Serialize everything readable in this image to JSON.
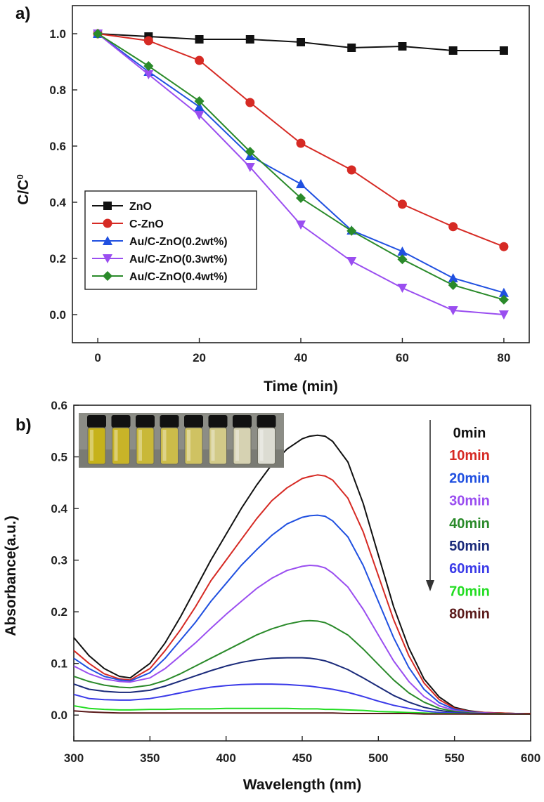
{
  "chart_data": [
    {
      "panel_label": "a)",
      "type": "line",
      "xlabel": "Time (min)",
      "ylabel": "C/C",
      "ylabel_sup": "0",
      "xlim": [
        -5,
        85
      ],
      "ylim": [
        -0.1,
        1.1
      ],
      "xticks": [
        0,
        20,
        40,
        60,
        80
      ],
      "yticks": [
        0.0,
        0.2,
        0.4,
        0.6,
        0.8,
        1.0
      ],
      "ytick_labels": [
        "0.0",
        "0.2",
        "0.4",
        "0.6",
        "0.8",
        "1.0"
      ],
      "legend": "center-left",
      "x": [
        0,
        10,
        20,
        30,
        40,
        50,
        60,
        70,
        80
      ],
      "series": [
        {
          "name": "ZnO",
          "color": "#111111",
          "marker": "square",
          "values": [
            1.0,
            0.99,
            0.98,
            0.98,
            0.97,
            0.95,
            0.955,
            0.94,
            0.94
          ]
        },
        {
          "name": "C-ZnO",
          "color": "#d62a24",
          "marker": "circle",
          "values": [
            1.0,
            0.975,
            0.905,
            0.755,
            0.61,
            0.515,
            0.393,
            0.313,
            0.242
          ]
        },
        {
          "name": "Au/C-ZnO(0.2wt%)",
          "color": "#2050e0",
          "marker": "triangle-up",
          "values": [
            1.0,
            0.865,
            0.74,
            0.565,
            0.465,
            0.3,
            0.225,
            0.13,
            0.078
          ]
        },
        {
          "name": "Au/C-ZnO(0.3wt%)",
          "color": "#9a4ef0",
          "marker": "triangle-down",
          "values": [
            1.0,
            0.855,
            0.71,
            0.525,
            0.32,
            0.19,
            0.095,
            0.015,
            0.0
          ]
        },
        {
          "name": "Au/C-ZnO(0.4wt%)",
          "color": "#2a8a2a",
          "marker": "diamond",
          "values": [
            1.0,
            0.885,
            0.76,
            0.58,
            0.415,
            0.298,
            0.197,
            0.105,
            0.053
          ]
        }
      ]
    },
    {
      "panel_label": "b)",
      "type": "line",
      "xlabel": "Wavelength (nm)",
      "ylabel": "Absorbance(a.u.)",
      "xlim": [
        300,
        600
      ],
      "ylim": [
        -0.05,
        0.6
      ],
      "xticks": [
        300,
        350,
        400,
        450,
        500,
        550,
        600
      ],
      "yticks": [
        0.0,
        0.1,
        0.2,
        0.3,
        0.4,
        0.5,
        0.6
      ],
      "ytick_labels": [
        "0.0",
        "0.1",
        "0.2",
        "0.3",
        "0.4",
        "0.5",
        "0.6"
      ],
      "legend": "right",
      "x": [
        300,
        310,
        320,
        330,
        337,
        350,
        360,
        370,
        380,
        390,
        400,
        410,
        420,
        430,
        440,
        450,
        455,
        460,
        465,
        470,
        480,
        490,
        500,
        510,
        520,
        530,
        540,
        550,
        560,
        570,
        580,
        590,
        600
      ],
      "series": [
        {
          "name": "0min",
          "color": "#111111",
          "values": [
            0.15,
            0.115,
            0.09,
            0.075,
            0.072,
            0.1,
            0.14,
            0.19,
            0.245,
            0.3,
            0.35,
            0.4,
            0.445,
            0.485,
            0.515,
            0.535,
            0.54,
            0.542,
            0.54,
            0.53,
            0.49,
            0.41,
            0.31,
            0.21,
            0.13,
            0.07,
            0.035,
            0.015,
            0.008,
            0.005,
            0.004,
            0.003,
            0.003
          ]
        },
        {
          "name": "10min",
          "color": "#d62a24",
          "values": [
            0.125,
            0.1,
            0.08,
            0.07,
            0.068,
            0.09,
            0.125,
            0.165,
            0.21,
            0.26,
            0.3,
            0.34,
            0.38,
            0.415,
            0.44,
            0.458,
            0.462,
            0.465,
            0.463,
            0.455,
            0.42,
            0.355,
            0.27,
            0.185,
            0.115,
            0.062,
            0.03,
            0.013,
            0.007,
            0.005,
            0.004,
            0.003,
            0.003
          ]
        },
        {
          "name": "20min",
          "color": "#2050e0",
          "values": [
            0.11,
            0.09,
            0.075,
            0.068,
            0.066,
            0.082,
            0.11,
            0.145,
            0.18,
            0.22,
            0.255,
            0.29,
            0.32,
            0.348,
            0.37,
            0.383,
            0.386,
            0.387,
            0.385,
            0.376,
            0.345,
            0.29,
            0.22,
            0.15,
            0.092,
            0.05,
            0.024,
            0.011,
            0.006,
            0.004,
            0.003,
            0.003,
            0.002
          ]
        },
        {
          "name": "30min",
          "color": "#9a4ef0",
          "values": [
            0.095,
            0.08,
            0.07,
            0.065,
            0.064,
            0.072,
            0.09,
            0.115,
            0.14,
            0.168,
            0.195,
            0.22,
            0.245,
            0.265,
            0.28,
            0.288,
            0.29,
            0.289,
            0.285,
            0.275,
            0.248,
            0.205,
            0.155,
            0.105,
            0.065,
            0.036,
            0.018,
            0.009,
            0.005,
            0.004,
            0.003,
            0.003,
            0.002
          ]
        },
        {
          "name": "40min",
          "color": "#2a8a2a",
          "values": [
            0.075,
            0.065,
            0.058,
            0.054,
            0.053,
            0.058,
            0.067,
            0.08,
            0.095,
            0.11,
            0.125,
            0.14,
            0.155,
            0.167,
            0.176,
            0.182,
            0.183,
            0.182,
            0.179,
            0.172,
            0.155,
            0.128,
            0.098,
            0.068,
            0.043,
            0.025,
            0.013,
            0.007,
            0.004,
            0.003,
            0.003,
            0.002,
            0.002
          ]
        },
        {
          "name": "50min",
          "color": "#1a2a7a",
          "values": [
            0.06,
            0.05,
            0.046,
            0.044,
            0.044,
            0.048,
            0.056,
            0.066,
            0.076,
            0.086,
            0.095,
            0.102,
            0.107,
            0.11,
            0.111,
            0.111,
            0.11,
            0.108,
            0.105,
            0.1,
            0.088,
            0.072,
            0.055,
            0.038,
            0.025,
            0.015,
            0.009,
            0.005,
            0.003,
            0.003,
            0.002,
            0.002,
            0.002
          ]
        },
        {
          "name": "60min",
          "color": "#3a3ae8",
          "values": [
            0.04,
            0.032,
            0.03,
            0.029,
            0.029,
            0.032,
            0.037,
            0.043,
            0.049,
            0.054,
            0.057,
            0.059,
            0.06,
            0.06,
            0.059,
            0.057,
            0.056,
            0.054,
            0.052,
            0.05,
            0.044,
            0.036,
            0.027,
            0.019,
            0.013,
            0.008,
            0.005,
            0.004,
            0.003,
            0.002,
            0.002,
            0.002,
            0.002
          ]
        },
        {
          "name": "70min",
          "color": "#22dd22",
          "values": [
            0.018,
            0.013,
            0.011,
            0.01,
            0.01,
            0.011,
            0.011,
            0.012,
            0.012,
            0.012,
            0.013,
            0.013,
            0.013,
            0.013,
            0.013,
            0.012,
            0.012,
            0.012,
            0.011,
            0.011,
            0.01,
            0.009,
            0.007,
            0.006,
            0.005,
            0.004,
            0.003,
            0.003,
            0.002,
            0.002,
            0.002,
            0.002,
            0.002
          ]
        },
        {
          "name": "80min",
          "color": "#5a1a1a",
          "values": [
            0.008,
            0.006,
            0.005,
            0.004,
            0.004,
            0.004,
            0.004,
            0.004,
            0.004,
            0.004,
            0.004,
            0.004,
            0.004,
            0.004,
            0.004,
            0.004,
            0.004,
            0.004,
            0.004,
            0.004,
            0.003,
            0.003,
            0.003,
            0.003,
            0.003,
            0.002,
            0.002,
            0.002,
            0.002,
            0.002,
            0.002,
            0.002,
            0.002
          ]
        }
      ],
      "inset": {
        "description_name": "vial photo inset",
        "vial_colors": [
          "#c6b21a",
          "#c8b428",
          "#c9b838",
          "#ccbc4a",
          "#cfc262",
          "#d2ca88",
          "#d6d2b2",
          "#dcdcd2"
        ]
      }
    }
  ]
}
